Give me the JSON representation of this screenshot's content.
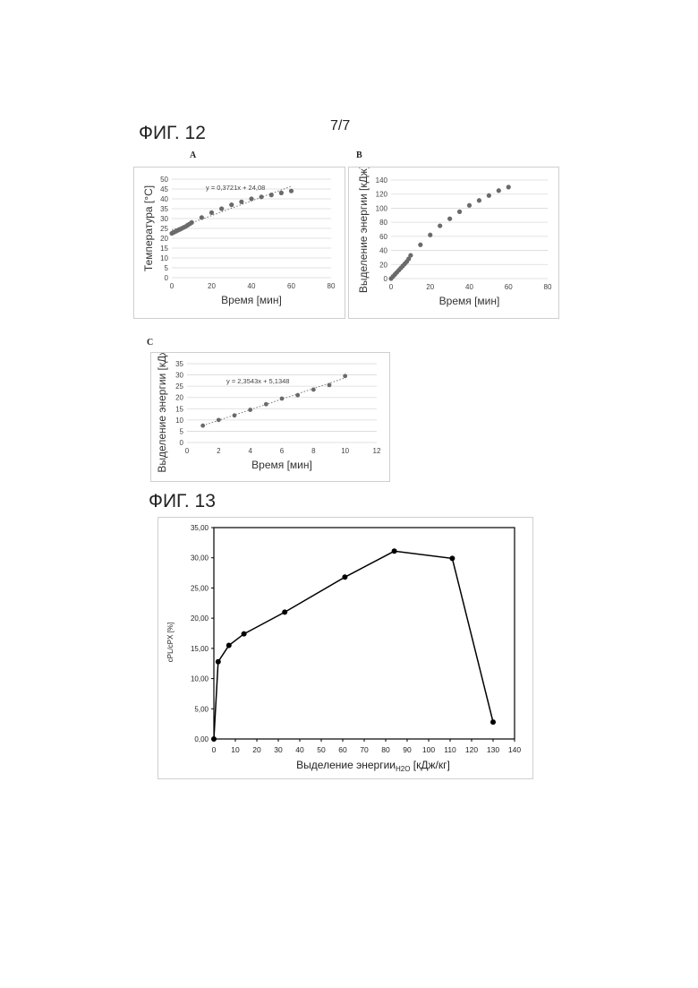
{
  "page_number": "7/7",
  "fig12": {
    "title": "ФИГ. 12",
    "panels": [
      {
        "letter": "A",
        "equation": "y = 0,3721x + 24,08"
      },
      {
        "letter": "B",
        "equation": ""
      },
      {
        "letter": "C",
        "equation": "y = 2,3543x + 5,1348"
      }
    ]
  },
  "fig13": {
    "title": "ФИГ. 13"
  },
  "colors": {
    "points_light": "#6a6a6a",
    "points_dark": "#000000",
    "trend": "#777777",
    "grid": "#d9d9d9"
  },
  "chart_data": [
    {
      "type": "scatter",
      "panel": "A",
      "xlabel": "Время [мин]",
      "ylabel": "Температура [°C]",
      "xlim": [
        0,
        80
      ],
      "ylim": [
        0,
        50
      ],
      "xticks": [
        0,
        20,
        40,
        60,
        80
      ],
      "yticks": [
        0,
        5,
        10,
        15,
        20,
        25,
        30,
        35,
        40,
        45,
        50
      ],
      "grid": "horizontal",
      "trendline": {
        "slope": 0.3721,
        "intercept": 24.08,
        "x_range": [
          0,
          60
        ],
        "label": "y = 0,3721x + 24,08"
      },
      "points": [
        [
          0,
          22.5
        ],
        [
          1,
          23
        ],
        [
          2,
          23.5
        ],
        [
          3,
          24
        ],
        [
          4,
          24.5
        ],
        [
          5,
          25
        ],
        [
          6,
          25.5
        ],
        [
          7,
          26
        ],
        [
          8,
          26.7
        ],
        [
          9,
          27.3
        ],
        [
          10,
          28
        ],
        [
          15,
          30.5
        ],
        [
          20,
          33
        ],
        [
          25,
          35
        ],
        [
          30,
          37
        ],
        [
          35,
          38.5
        ],
        [
          40,
          40
        ],
        [
          45,
          41
        ],
        [
          50,
          42
        ],
        [
          55,
          43
        ],
        [
          60,
          44
        ]
      ]
    },
    {
      "type": "scatter",
      "panel": "B",
      "xlabel": "Время [мин]",
      "ylabel": "Выделение энергии [кДж]",
      "xlim": [
        0,
        80
      ],
      "ylim": [
        0,
        140
      ],
      "xticks": [
        0,
        20,
        40,
        60,
        80
      ],
      "yticks": [
        0,
        20,
        40,
        60,
        80,
        100,
        120,
        140
      ],
      "grid": "horizontal",
      "points": [
        [
          0,
          0
        ],
        [
          1,
          3
        ],
        [
          2,
          6
        ],
        [
          3,
          9
        ],
        [
          4,
          12
        ],
        [
          5,
          15
        ],
        [
          6,
          18
        ],
        [
          7,
          21
        ],
        [
          8,
          24
        ],
        [
          9,
          28
        ],
        [
          10,
          33
        ],
        [
          15,
          48
        ],
        [
          20,
          62
        ],
        [
          25,
          75
        ],
        [
          30,
          85
        ],
        [
          35,
          95
        ],
        [
          40,
          104
        ],
        [
          45,
          111
        ],
        [
          50,
          118
        ],
        [
          55,
          125
        ],
        [
          60,
          130
        ]
      ]
    },
    {
      "type": "scatter",
      "panel": "C",
      "xlabel": "Время [мин]",
      "ylabel": "Выделение энергии [кДж/кг]",
      "xlim": [
        0,
        12
      ],
      "ylim": [
        0,
        35
      ],
      "xticks": [
        0,
        2,
        4,
        6,
        8,
        10,
        12
      ],
      "yticks": [
        0,
        5,
        10,
        15,
        20,
        25,
        30,
        35
      ],
      "grid": "horizontal",
      "trendline": {
        "slope": 2.3543,
        "intercept": 5.1348,
        "x_range": [
          1,
          10
        ],
        "label": "y = 2,3543x + 5,1348"
      },
      "points": [
        [
          1,
          7.5
        ],
        [
          2,
          10
        ],
        [
          3,
          12
        ],
        [
          4,
          14.5
        ],
        [
          5,
          17
        ],
        [
          6,
          19.5
        ],
        [
          7,
          21
        ],
        [
          8,
          23.5
        ],
        [
          9,
          25.5
        ],
        [
          10,
          29.5
        ]
      ]
    },
    {
      "type": "line",
      "panel": "13",
      "xlabel": "Выделение энергии",
      "xlabel_sub": "H2O",
      "xlabel_unit": " [кДж/кг]",
      "ylabel": "cPL/cPX [%]",
      "xlim": [
        0,
        140
      ],
      "ylim": [
        0,
        35
      ],
      "xticks": [
        0,
        10,
        20,
        30,
        40,
        50,
        60,
        70,
        80,
        90,
        100,
        110,
        120,
        130,
        140
      ],
      "yticks": [
        "0,00",
        "5,00",
        "10,00",
        "15,00",
        "20,00",
        "25,00",
        "30,00",
        "35,00"
      ],
      "grid": "none",
      "points": [
        [
          0,
          0
        ],
        [
          2,
          12.8
        ],
        [
          7,
          15.5
        ],
        [
          14,
          17.4
        ],
        [
          33,
          21
        ],
        [
          61,
          26.8
        ],
        [
          84,
          31.1
        ],
        [
          111,
          29.9
        ],
        [
          130,
          2.8
        ]
      ]
    }
  ]
}
